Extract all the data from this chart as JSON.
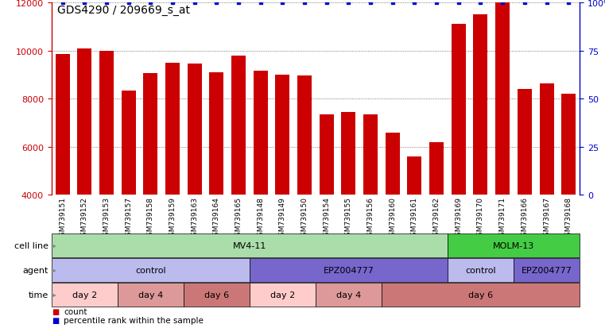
{
  "title": "GDS4290 / 209669_s_at",
  "samples": [
    "GSM739151",
    "GSM739152",
    "GSM739153",
    "GSM739157",
    "GSM739158",
    "GSM739159",
    "GSM739163",
    "GSM739164",
    "GSM739165",
    "GSM739148",
    "GSM739149",
    "GSM739150",
    "GSM739154",
    "GSM739155",
    "GSM739156",
    "GSM739160",
    "GSM739161",
    "GSM739162",
    "GSM739169",
    "GSM739170",
    "GSM739171",
    "GSM739166",
    "GSM739167",
    "GSM739168"
  ],
  "counts": [
    9850,
    10100,
    10000,
    8350,
    9050,
    9500,
    9450,
    9100,
    9800,
    9150,
    9000,
    8950,
    7350,
    7450,
    7350,
    6600,
    5600,
    6200,
    11100,
    11500,
    12000,
    8400,
    8650,
    8200
  ],
  "percentile": [
    100,
    100,
    100,
    100,
    100,
    100,
    100,
    100,
    100,
    100,
    100,
    100,
    100,
    100,
    100,
    100,
    100,
    100,
    100,
    100,
    100,
    100,
    100,
    100
  ],
  "bar_color": "#cc0000",
  "dot_color": "#0000cc",
  "ylim_left": [
    4000,
    12000
  ],
  "ylim_right": [
    0,
    100
  ],
  "yticks_left": [
    4000,
    6000,
    8000,
    10000,
    12000
  ],
  "yticks_right": [
    0,
    25,
    50,
    75,
    100
  ],
  "cell_line_row": {
    "label": "cell line",
    "segments": [
      {
        "text": "MV4-11",
        "start": 0,
        "end": 18,
        "color": "#aaddaa"
      },
      {
        "text": "MOLM-13",
        "start": 18,
        "end": 24,
        "color": "#44cc44"
      }
    ]
  },
  "agent_row": {
    "label": "agent",
    "segments": [
      {
        "text": "control",
        "start": 0,
        "end": 9,
        "color": "#bbbbee"
      },
      {
        "text": "EPZ004777",
        "start": 9,
        "end": 18,
        "color": "#7766cc"
      },
      {
        "text": "control",
        "start": 18,
        "end": 21,
        "color": "#bbbbee"
      },
      {
        "text": "EPZ004777",
        "start": 21,
        "end": 24,
        "color": "#7766cc"
      }
    ]
  },
  "time_row": {
    "label": "time",
    "segments": [
      {
        "text": "day 2",
        "start": 0,
        "end": 3,
        "color": "#ffcccc"
      },
      {
        "text": "day 4",
        "start": 3,
        "end": 6,
        "color": "#dd9999"
      },
      {
        "text": "day 6",
        "start": 6,
        "end": 9,
        "color": "#cc7777"
      },
      {
        "text": "day 2",
        "start": 9,
        "end": 12,
        "color": "#ffcccc"
      },
      {
        "text": "day 4",
        "start": 12,
        "end": 15,
        "color": "#dd9999"
      },
      {
        "text": "day 6",
        "start": 15,
        "end": 24,
        "color": "#cc7777"
      }
    ]
  },
  "legend_count_color": "#cc0000",
  "legend_dot_color": "#0000cc",
  "grid_color": "#555555",
  "background_color": "#ffffff",
  "title_fontsize": 10,
  "bar_tick_fontsize": 6.5,
  "ytick_fontsize": 8,
  "row_label_fontsize": 8,
  "row_text_fontsize": 8,
  "legend_fontsize": 7.5
}
